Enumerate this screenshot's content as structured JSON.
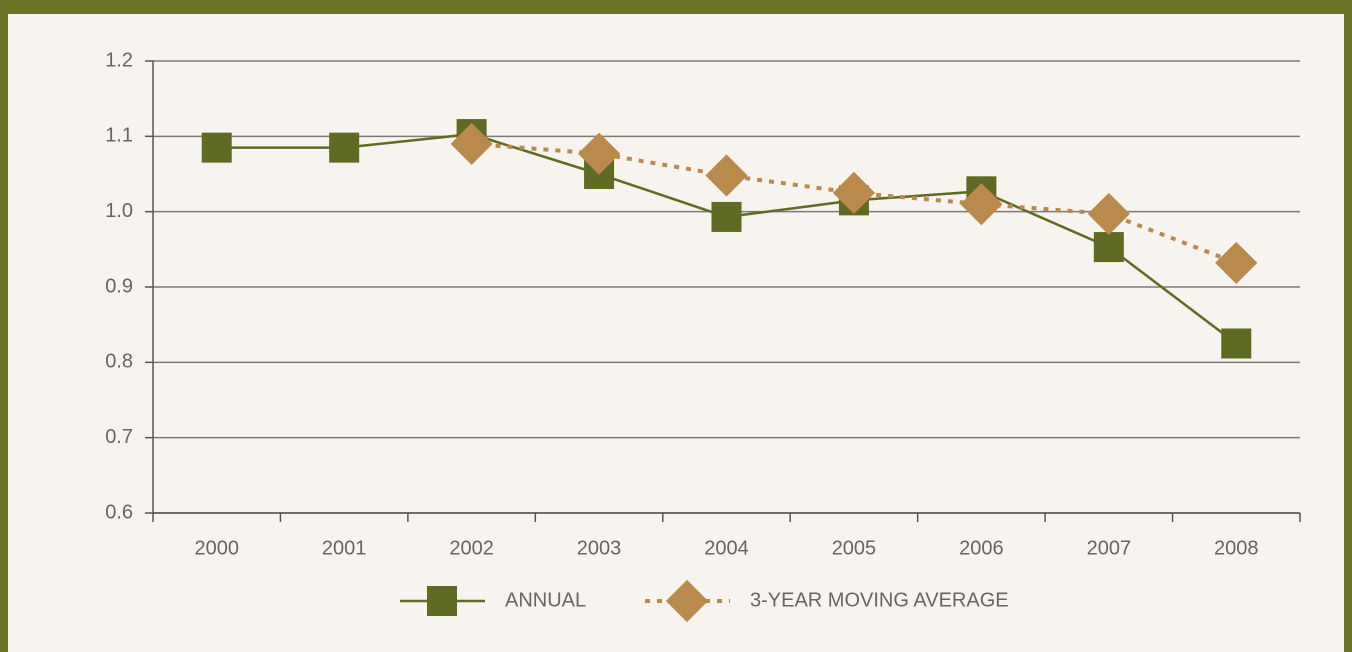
{
  "chart_data": {
    "type": "line",
    "categories": [
      "2000",
      "2001",
      "2002",
      "2003",
      "2004",
      "2005",
      "2006",
      "2007",
      "2008"
    ],
    "series": [
      {
        "name": "ANNUAL",
        "color": "#5f6b22",
        "marker": "square",
        "dash": "solid",
        "values": [
          1.085,
          1.085,
          1.103,
          1.05,
          0.993,
          1.015,
          1.027,
          0.953,
          0.825
        ]
      },
      {
        "name": "3-YEAR MOVING AVERAGE",
        "color": "#b98a4c",
        "marker": "diamond",
        "dash": "dotted",
        "values": [
          null,
          null,
          1.09,
          1.077,
          1.048,
          1.025,
          1.01,
          0.997,
          0.932
        ]
      }
    ],
    "ylim": [
      0.6,
      1.2
    ],
    "yticks": [
      0.6,
      0.7,
      0.8,
      0.9,
      {
        "value": 1,
        "label": "1.0"
      },
      1.1,
      1.2
    ],
    "grid": true,
    "legend": "bottom"
  }
}
